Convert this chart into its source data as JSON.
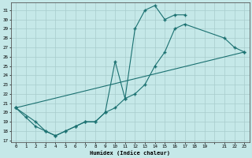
{
  "xlabel": "Humidex (Indice chaleur)",
  "xlim": [
    -0.5,
    23.5
  ],
  "ylim": [
    16.8,
    31.8
  ],
  "bg_color": "#c5e8e8",
  "line_color": "#1a7070",
  "grid_color": "#b0d4d4",
  "xtick_labels": [
    "0",
    "1",
    "2",
    "3",
    "4",
    "5",
    "6",
    "7",
    "8",
    "9",
    "10",
    "11",
    "12",
    "13",
    "14",
    "15",
    "16",
    "17",
    "18",
    "19",
    "",
    "21",
    "22",
    "23"
  ],
  "xtick_vals": [
    0,
    1,
    2,
    3,
    4,
    5,
    6,
    7,
    8,
    9,
    10,
    11,
    12,
    13,
    14,
    15,
    16,
    17,
    18,
    19,
    20,
    21,
    22,
    23
  ],
  "ytick_vals": [
    17,
    18,
    19,
    20,
    21,
    22,
    23,
    24,
    25,
    26,
    27,
    28,
    29,
    30,
    31
  ],
  "line1_x": [
    0,
    1,
    2,
    3,
    4,
    5,
    6,
    7,
    8,
    9,
    10,
    11,
    12,
    13,
    14,
    15,
    16,
    17
  ],
  "line1_y": [
    20.5,
    19.5,
    18.5,
    18.0,
    17.5,
    18.0,
    18.5,
    19.0,
    19.0,
    20.0,
    25.5,
    21.5,
    29.0,
    31.0,
    31.5,
    30.0,
    30.5,
    30.5
  ],
  "line2_x": [
    0,
    2,
    3,
    4,
    5,
    6,
    7,
    8,
    9,
    10,
    11,
    12,
    13,
    14,
    15,
    16,
    17,
    21,
    22,
    23
  ],
  "line2_y": [
    20.5,
    19.0,
    18.0,
    17.5,
    18.0,
    18.5,
    19.0,
    19.0,
    20.0,
    20.5,
    21.5,
    22.0,
    23.0,
    25.0,
    26.5,
    29.0,
    29.5,
    28.0,
    27.0,
    26.5
  ],
  "line3_x": [
    0,
    23
  ],
  "line3_y": [
    20.5,
    26.5
  ]
}
